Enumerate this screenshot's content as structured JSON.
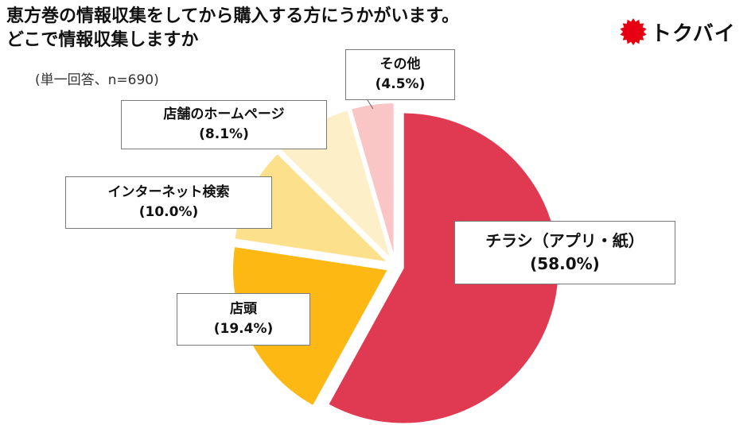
{
  "header": {
    "title_line1": "恵方巻の情報収集をしてから購入する方にうかがいます。",
    "title_line2": "どこで情報収集しますか",
    "subtitle": "(単一回答、n=690)",
    "logo_text": "トクバイ",
    "logo_color": "#e60012"
  },
  "chart_data": {
    "type": "pie",
    "title": "恵方巻の情報収集をしてから購入する方にうかがいます。どこで情報収集しますか",
    "subtitle": "(単一回答、n=690)",
    "start_angle_deg": 0,
    "direction": "clockwise",
    "exploded": true,
    "slices": [
      {
        "label": "チラシ（アプリ・紙）",
        "value": 58.0,
        "value_label": "(58.0%)",
        "color": "#e03a52"
      },
      {
        "label": "店頭",
        "value": 19.4,
        "value_label": "(19.4%)",
        "color": "#fdb813"
      },
      {
        "label": "インターネット検索",
        "value": 10.0,
        "value_label": "(10.0%)",
        "color": "#fde08c"
      },
      {
        "label": "店舗のホームページ",
        "value": 8.1,
        "value_label": "(8.1%)",
        "color": "#fdf0c9"
      },
      {
        "label": "その他",
        "value": 4.5,
        "value_label": "(4.5%)",
        "color": "#f9c5c5"
      }
    ]
  }
}
